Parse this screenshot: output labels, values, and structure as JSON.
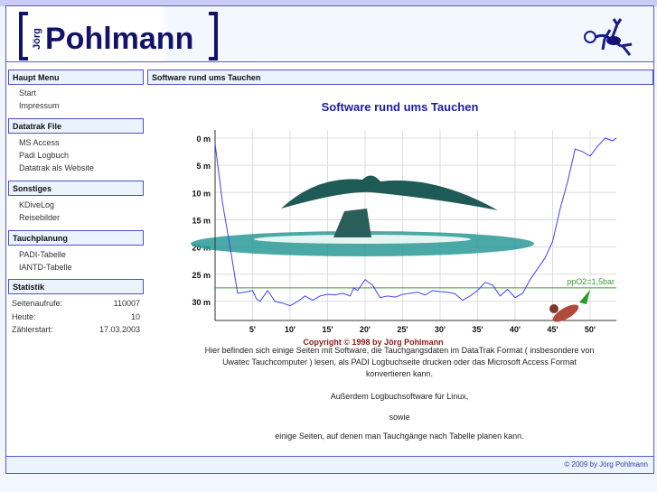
{
  "header": {
    "logo_first": "Jörg",
    "logo_last": "Pohlmann",
    "logo_icon": "gecko-icon"
  },
  "sidebar": {
    "sections": [
      {
        "title": "Haupt Menu",
        "items": [
          "Start",
          "Impressum"
        ]
      },
      {
        "title": "Datatrak File",
        "items": [
          "MS Access",
          "Padi Logbuch",
          "Datatrak als Website"
        ]
      },
      {
        "title": "Sonstiges",
        "items": [
          "KDiveLog",
          "Reisebilder"
        ]
      },
      {
        "title": "Tauchplanung",
        "items": [
          "PADI-Tabelle",
          "IANTD-Tabelle"
        ]
      }
    ],
    "statistik": {
      "title": "Statistik",
      "rows": [
        {
          "label": "Seitenaufrufe:",
          "value": "110007"
        },
        {
          "label": "Heute:",
          "value": "10"
        },
        {
          "label": "Zählerstart:",
          "value": "17.03.2003"
        }
      ]
    }
  },
  "main": {
    "box_title": "Software rund ums Tauchen",
    "title": "Software rund ums Tauchen",
    "paragraphs": [
      "Hier befinden sich einige Seiten mit Software, die Tauchgangsdaten im DataTrak Format ( insbesondere von Uwatec Tauchcomputer ) lesen, als PADI Logbuchseite drucken oder das Microsoft Access Format konvertieren kann.",
      "Außerdem Logbuchsoftware für Linux,",
      "sowie",
      "einige Seiten, auf denen man Tauchgänge nach Tabelle planen kann."
    ]
  },
  "chart_data": {
    "type": "line",
    "xlabel": "",
    "ylabel": "",
    "x_ticks": [
      "5'",
      "10'",
      "15'",
      "20'",
      "25'",
      "30'",
      "35'",
      "40'",
      "45'",
      "50'"
    ],
    "y_ticks": [
      "0 m",
      "5 m",
      "10 m",
      "15 m",
      "20 m",
      "25 m",
      "30 m"
    ],
    "xlim": [
      0,
      53.5
    ],
    "ylim": [
      0,
      33
    ],
    "y_inverted": true,
    "grid": true,
    "series": [
      {
        "color": "#4040ff",
        "points": [
          [
            0,
            1
          ],
          [
            1,
            12
          ],
          [
            2,
            20
          ],
          [
            3,
            28.5
          ],
          [
            4,
            28.3
          ],
          [
            5,
            28
          ],
          [
            5.5,
            29.5
          ],
          [
            6,
            30
          ],
          [
            7,
            28
          ],
          [
            8,
            30
          ],
          [
            9,
            30.3
          ],
          [
            10,
            30.8
          ],
          [
            11,
            30
          ],
          [
            12,
            29
          ],
          [
            13,
            29.8
          ],
          [
            14,
            29
          ],
          [
            15,
            28.7
          ],
          [
            16,
            28.8
          ],
          [
            17,
            28.5
          ],
          [
            18,
            29
          ],
          [
            18.5,
            27.5
          ],
          [
            19,
            28
          ],
          [
            20,
            26
          ],
          [
            21,
            27
          ],
          [
            22,
            29.3
          ],
          [
            23,
            29
          ],
          [
            24,
            29.2
          ],
          [
            25,
            28.7
          ],
          [
            26,
            28.5
          ],
          [
            27,
            28.3
          ],
          [
            28,
            28.8
          ],
          [
            29,
            28
          ],
          [
            30,
            28.2
          ],
          [
            31,
            28.3
          ],
          [
            32,
            28.6
          ],
          [
            33,
            29.8
          ],
          [
            34,
            29
          ],
          [
            35,
            28
          ],
          [
            36,
            26.5
          ],
          [
            37,
            27
          ],
          [
            38,
            29
          ],
          [
            39,
            27.8
          ],
          [
            40,
            29.3
          ],
          [
            41,
            28.5
          ],
          [
            42,
            26
          ],
          [
            43,
            24
          ],
          [
            44,
            22
          ],
          [
            45,
            19
          ],
          [
            46,
            13
          ],
          [
            47,
            8
          ],
          [
            48,
            2
          ],
          [
            49,
            2.5
          ],
          [
            50,
            3.3
          ],
          [
            51,
            1.5
          ],
          [
            52,
            0
          ],
          [
            53,
            0.5
          ],
          [
            53.5,
            0
          ]
        ]
      }
    ],
    "reference_line": {
      "label": "ppO2=1,5bar",
      "depth": 27.5,
      "color": "#3a9a3a"
    },
    "copyright": "Copyright © 1998 by Jörg Pohlmann"
  },
  "footer": {
    "text": "© 2009 by Jörg Pohlmann"
  }
}
